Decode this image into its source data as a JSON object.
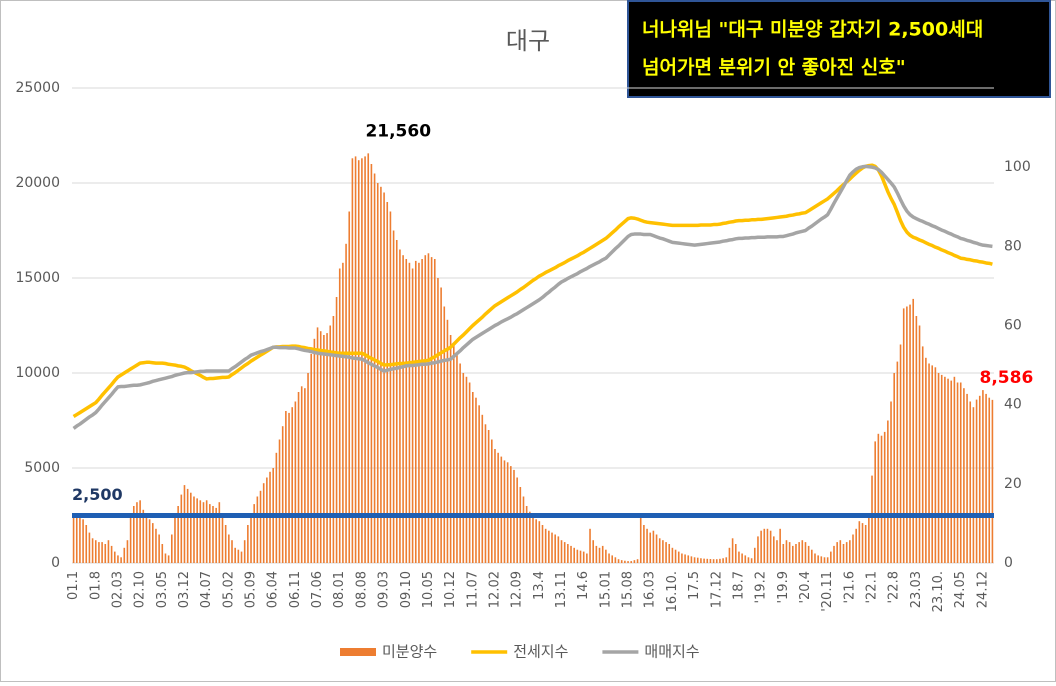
{
  "headline": [
    "너나위님 \"대구 미분양 갑자기 2,500세대",
    "넘어가면 분위기 안 좋아진 신호\""
  ],
  "chart_data": {
    "type": "bar",
    "title": "대구",
    "categories": [
      "01.1",
      null,
      null,
      null,
      null,
      null,
      null,
      "01.8",
      null,
      null,
      null,
      null,
      null,
      null,
      "02.03",
      null,
      null,
      null,
      null,
      null,
      null,
      "02.10",
      null,
      null,
      null,
      null,
      null,
      null,
      "03.05",
      null,
      null,
      null,
      null,
      null,
      null,
      "03.12",
      null,
      null,
      null,
      null,
      null,
      null,
      "04.07",
      null,
      null,
      null,
      null,
      null,
      null,
      "05.02",
      null,
      null,
      null,
      null,
      null,
      null,
      "05.09",
      null,
      null,
      null,
      null,
      null,
      null,
      "06.04",
      null,
      null,
      null,
      null,
      null,
      null,
      "06.11",
      null,
      null,
      null,
      null,
      null,
      null,
      "07.06",
      null,
      null,
      null,
      null,
      null,
      null,
      "08.01",
      null,
      null,
      null,
      null,
      null,
      null,
      "08.08",
      null,
      null,
      null,
      null,
      null,
      null,
      "09.03",
      null,
      null,
      null,
      null,
      null,
      null,
      "09.10",
      null,
      null,
      null,
      null,
      null,
      null,
      "10.05",
      null,
      null,
      null,
      null,
      null,
      null,
      "10.12",
      null,
      null,
      null,
      null,
      null,
      null,
      "11.07",
      null,
      null,
      null,
      null,
      null,
      null,
      "12.02",
      null,
      null,
      null,
      null,
      null,
      null,
      "12.09",
      null,
      null,
      null,
      null,
      null,
      null,
      "13.4",
      null,
      null,
      null,
      null,
      null,
      null,
      "13.11",
      null,
      null,
      null,
      null,
      null,
      null,
      "14.6",
      null,
      null,
      null,
      null,
      null,
      null,
      "15.01",
      null,
      null,
      null,
      null,
      null,
      null,
      "15.08",
      null,
      null,
      null,
      null,
      null,
      null,
      "16.03",
      null,
      null,
      null,
      null,
      null,
      null,
      "16.10.",
      null,
      null,
      null,
      null,
      null,
      null,
      "17.5",
      null,
      null,
      null,
      null,
      null,
      null,
      "17.12",
      null,
      null,
      null,
      null,
      null,
      null,
      "18.7",
      null,
      null,
      null,
      null,
      null,
      null,
      "'19.2",
      null,
      null,
      null,
      null,
      null,
      null,
      "'19.9",
      null,
      null,
      null,
      null,
      null,
      null,
      "'20.4",
      null,
      null,
      null,
      null,
      null,
      null,
      "'20.11",
      null,
      null,
      null,
      null,
      null,
      null,
      "'21.6",
      null,
      null,
      null,
      null,
      null,
      null,
      "'22.1",
      null,
      null,
      null,
      null,
      null,
      null,
      "'22.8",
      null,
      null,
      null,
      null,
      null,
      null,
      "23.03",
      null,
      null,
      null,
      null,
      null,
      null,
      "23.10.",
      null,
      null,
      null,
      null,
      null,
      null,
      "24.05",
      null,
      null,
      null,
      null,
      null,
      null,
      "24.12",
      null,
      null,
      null
    ],
    "series": [
      {
        "name": "미분양수",
        "type": "bar",
        "color": "#ed7d31",
        "values": [
          2600,
          2500,
          2400,
          2300,
          2000,
          1600,
          1300,
          1200,
          1100,
          1100,
          1000,
          1200,
          900,
          600,
          400,
          300,
          800,
          1200,
          2600,
          3000,
          3200,
          3300,
          2800,
          2500,
          2300,
          2100,
          1800,
          1500,
          1000,
          500,
          400,
          1500,
          2500,
          3000,
          3600,
          4100,
          3900,
          3700,
          3500,
          3400,
          3300,
          3200,
          3300,
          3100,
          3000,
          2900,
          3200,
          2600,
          2000,
          1500,
          1200,
          800,
          700,
          600,
          1200,
          2000,
          2500,
          3100,
          3500,
          3800,
          4200,
          4500,
          4800,
          5000,
          5800,
          6500,
          7200,
          8000,
          7900,
          8200,
          8500,
          9000,
          9300,
          9200,
          10000,
          11000,
          11800,
          12400,
          12200,
          12000,
          12100,
          12500,
          13000,
          14000,
          15500,
          15800,
          16800,
          18500,
          21300,
          21400,
          21200,
          21300,
          21400,
          21560,
          21000,
          20500,
          20000,
          19800,
          19500,
          19000,
          18500,
          17500,
          17000,
          16500,
          16200,
          16000,
          15800,
          15500,
          15900,
          15800,
          16000,
          16200,
          16300,
          16100,
          16000,
          15000,
          14500,
          13500,
          12800,
          12000,
          11500,
          11000,
          10500,
          10000,
          9800,
          9500,
          9000,
          8700,
          8300,
          7800,
          7300,
          7000,
          6500,
          6000,
          5800,
          5600,
          5400,
          5300,
          5100,
          4900,
          4500,
          4000,
          3500,
          3000,
          2700,
          2500,
          2300,
          2200,
          2000,
          1800,
          1700,
          1600,
          1500,
          1400,
          1200,
          1100,
          1000,
          900,
          800,
          700,
          650,
          600,
          500,
          1800,
          1200,
          900,
          800,
          900,
          700,
          500,
          400,
          300,
          200,
          150,
          120,
          100,
          100,
          150,
          200,
          2400,
          2000,
          1800,
          1600,
          1700,
          1500,
          1300,
          1200,
          1100,
          1000,
          800,
          700,
          600,
          500,
          450,
          400,
          350,
          300,
          280,
          250,
          230,
          220,
          210,
          200,
          200,
          220,
          250,
          300,
          800,
          1300,
          1000,
          600,
          500,
          400,
          300,
          250,
          800,
          1400,
          1700,
          1800,
          1800,
          1700,
          1400,
          1200,
          1800,
          1000,
          1200,
          1100,
          900,
          1000,
          1100,
          1200,
          1100,
          900,
          700,
          500,
          400,
          350,
          300,
          300,
          600,
          900,
          1100,
          1200,
          1000,
          1100,
          1200,
          1500,
          1800,
          2200,
          2100,
          2000,
          2400,
          4600,
          6400,
          6800,
          6700,
          6900,
          7500,
          8500,
          10000,
          10600,
          11500,
          13400,
          13500,
          13600,
          13900,
          13000,
          12500,
          11400,
          10800,
          10500,
          10400,
          10300,
          10000,
          9900,
          9800,
          9700,
          9600,
          9800,
          9500,
          9500,
          9200,
          8900,
          8500,
          8200,
          8600,
          8800,
          9100,
          8900,
          8700,
          8586
        ],
        "value_labels": {
          "93": "21,560",
          "290": "8,586"
        }
      },
      {
        "name": "전세지수",
        "type": "line",
        "axis": "y2",
        "color": "#ffc000",
        "values": [
          37.0,
          37.5,
          38.0,
          38.5,
          39.0,
          39.5,
          40.0,
          40.5,
          41.4,
          42.4,
          43.3,
          44.2,
          45.1,
          46.1,
          47.0,
          47.5,
          48.0,
          48.5,
          49.0,
          49.5,
          50.0,
          50.5,
          50.6,
          50.7,
          50.7,
          50.6,
          50.5,
          50.5,
          50.5,
          50.4,
          50.2,
          50.1,
          50.0,
          49.8,
          49.7,
          49.5,
          49.1,
          48.6,
          48.2,
          47.8,
          47.4,
          46.9,
          46.5,
          46.6,
          46.6,
          46.7,
          46.8,
          46.9,
          46.9,
          47.0,
          47.6,
          48.1,
          48.7,
          49.3,
          49.9,
          50.4,
          51.0,
          51.5,
          52.0,
          52.5,
          53.0,
          53.5,
          54.0,
          54.5,
          54.6,
          54.6,
          54.7,
          54.7,
          54.7,
          54.8,
          54.8,
          54.7,
          54.5,
          54.4,
          54.2,
          54.1,
          53.9,
          53.8,
          53.7,
          53.6,
          53.5,
          53.3,
          53.2,
          53.1,
          53.0,
          53.0,
          53.0,
          53.0,
          53.0,
          53.0,
          53.0,
          53.0,
          52.6,
          52.1,
          51.7,
          51.3,
          50.9,
          50.4,
          50.0,
          50.1,
          50.1,
          50.2,
          50.3,
          50.4,
          50.4,
          50.5,
          50.6,
          50.7,
          50.8,
          50.9,
          51.0,
          51.1,
          51.2,
          51.7,
          52.1,
          52.6,
          53.1,
          53.6,
          54.0,
          54.5,
          55.3,
          56.1,
          56.9,
          57.6,
          58.4,
          59.2,
          60.0,
          60.7,
          61.4,
          62.1,
          62.9,
          63.6,
          64.3,
          65.0,
          65.5,
          66.0,
          66.5,
          67.0,
          67.5,
          68.0,
          68.5,
          69.1,
          69.6,
          70.2,
          70.8,
          71.4,
          71.9,
          72.5,
          72.9,
          73.4,
          73.8,
          74.2,
          74.6,
          75.1,
          75.5,
          75.9,
          76.4,
          76.8,
          77.2,
          77.6,
          78.1,
          78.5,
          79.0,
          79.5,
          80.0,
          80.5,
          81.0,
          81.5,
          82.0,
          82.7,
          83.4,
          84.1,
          84.9,
          85.6,
          86.3,
          87.0,
          87.2,
          87.1,
          86.9,
          86.6,
          86.3,
          86.1,
          86.0,
          85.9,
          85.8,
          85.7,
          85.6,
          85.5,
          85.4,
          85.3,
          85.3,
          85.3,
          85.3,
          85.3,
          85.3,
          85.3,
          85.3,
          85.3,
          85.4,
          85.4,
          85.4,
          85.4,
          85.5,
          85.5,
          85.6,
          85.8,
          85.9,
          86.1,
          86.2,
          86.4,
          86.5,
          86.5,
          86.6,
          86.6,
          86.7,
          86.7,
          86.8,
          86.8,
          86.9,
          87.0,
          87.1,
          87.2,
          87.3,
          87.4,
          87.5,
          87.6,
          87.8,
          87.9,
          88.1,
          88.2,
          88.4,
          88.5,
          89.0,
          89.5,
          90.0,
          90.5,
          91.0,
          91.5,
          92.0,
          92.7,
          93.4,
          94.1,
          94.9,
          95.6,
          96.3,
          97.0,
          97.8,
          98.5,
          99.2,
          99.8,
          100.2,
          100.4,
          100.5,
          100.2,
          99.3,
          97.8,
          95.8,
          93.8,
          92.1,
          90.6,
          88.6,
          86.5,
          84.8,
          83.6,
          82.8,
          82.3,
          82.0,
          81.6,
          81.3,
          80.9,
          80.5,
          80.2,
          79.8,
          79.5,
          79.1,
          78.8,
          78.4,
          78.1,
          77.7,
          77.4,
          77.0,
          76.9,
          76.7,
          76.6,
          76.4,
          76.3,
          76.1,
          76.0,
          75.8,
          75.7,
          75.5
        ]
      },
      {
        "name": "매매지수",
        "type": "line",
        "axis": "y2",
        "color": "#a5a5a5",
        "values": [
          34.0,
          34.6,
          35.1,
          35.7,
          36.3,
          36.9,
          37.4,
          38.0,
          38.9,
          39.9,
          40.8,
          41.7,
          42.6,
          43.6,
          44.5,
          44.6,
          44.6,
          44.7,
          44.8,
          44.9,
          44.9,
          45.0,
          45.2,
          45.4,
          45.6,
          45.9,
          46.1,
          46.3,
          46.5,
          46.7,
          46.9,
          47.1,
          47.4,
          47.6,
          47.8,
          48.0,
          48.1,
          48.1,
          48.2,
          48.3,
          48.4,
          48.4,
          48.5,
          48.5,
          48.5,
          48.5,
          48.5,
          48.5,
          48.5,
          48.5,
          49.1,
          49.6,
          50.2,
          50.8,
          51.4,
          51.9,
          52.5,
          52.8,
          53.1,
          53.4,
          53.6,
          53.9,
          54.2,
          54.5,
          54.5,
          54.4,
          54.4,
          54.4,
          54.3,
          54.3,
          54.3,
          54.1,
          53.9,
          53.7,
          53.6,
          53.4,
          53.2,
          53.0,
          52.9,
          52.8,
          52.7,
          52.6,
          52.5,
          52.4,
          52.3,
          52.2,
          52.1,
          52.0,
          51.8,
          51.7,
          51.6,
          51.5,
          51.1,
          50.6,
          50.2,
          49.8,
          49.4,
          48.9,
          48.5,
          48.7,
          48.9,
          49.1,
          49.2,
          49.4,
          49.6,
          49.8,
          49.9,
          49.9,
          50.0,
          50.1,
          50.2,
          50.2,
          50.3,
          50.5,
          50.6,
          50.8,
          51.0,
          51.2,
          51.3,
          51.5,
          52.2,
          52.9,
          53.6,
          54.4,
          55.1,
          55.8,
          56.5,
          57.0,
          57.5,
          58.0,
          58.5,
          59.0,
          59.5,
          60.0,
          60.4,
          60.9,
          61.3,
          61.7,
          62.1,
          62.6,
          63.0,
          63.5,
          64.0,
          64.5,
          65.0,
          65.5,
          66.0,
          66.5,
          67.1,
          67.8,
          68.4,
          69.1,
          69.7,
          70.4,
          71.0,
          71.4,
          71.9,
          72.3,
          72.7,
          73.1,
          73.6,
          74.0,
          74.4,
          74.9,
          75.3,
          75.7,
          76.1,
          76.6,
          77.0,
          77.8,
          78.6,
          79.4,
          80.1,
          80.9,
          81.7,
          82.5,
          83.0,
          83.1,
          83.1,
          83.1,
          83.0,
          83.0,
          83.0,
          82.7,
          82.4,
          82.1,
          81.9,
          81.6,
          81.3,
          81.0,
          80.9,
          80.8,
          80.7,
          80.6,
          80.5,
          80.4,
          80.3,
          80.4,
          80.5,
          80.6,
          80.7,
          80.8,
          80.9,
          81.0,
          81.1,
          81.3,
          81.4,
          81.6,
          81.7,
          81.9,
          82.0,
          82.0,
          82.1,
          82.1,
          82.2,
          82.2,
          82.3,
          82.3,
          82.3,
          82.4,
          82.4,
          82.4,
          82.4,
          82.5,
          82.5,
          82.7,
          82.9,
          83.1,
          83.4,
          83.6,
          83.8,
          84.0,
          84.6,
          85.1,
          85.7,
          86.3,
          86.9,
          87.4,
          88.0,
          89.4,
          90.9,
          92.3,
          93.7,
          95.1,
          96.6,
          98.0,
          98.8,
          99.5,
          99.9,
          100.1,
          100.2,
          100.1,
          100.0,
          99.8,
          99.4,
          98.7,
          97.8,
          96.9,
          96.0,
          95.0,
          93.5,
          91.8,
          90.2,
          88.9,
          88.0,
          87.4,
          87.0,
          86.6,
          86.3,
          85.9,
          85.6,
          85.2,
          84.9,
          84.5,
          84.1,
          83.8,
          83.4,
          83.1,
          82.7,
          82.4,
          82.0,
          81.8,
          81.5,
          81.3,
          81.0,
          80.8,
          80.5,
          80.3,
          80.2,
          80.1,
          80.0
        ]
      }
    ],
    "ylim": [
      0,
      25000
    ],
    "yticks": [
      0,
      5000,
      10000,
      15000,
      20000,
      25000
    ],
    "y2lim": [
      0,
      120
    ],
    "y2ticks": [
      0,
      20,
      40,
      60,
      80,
      100
    ],
    "grid": true,
    "legend": "bottom",
    "reference_line": {
      "value": 2500,
      "label": "2,500",
      "color": "#1f5fb4"
    }
  }
}
